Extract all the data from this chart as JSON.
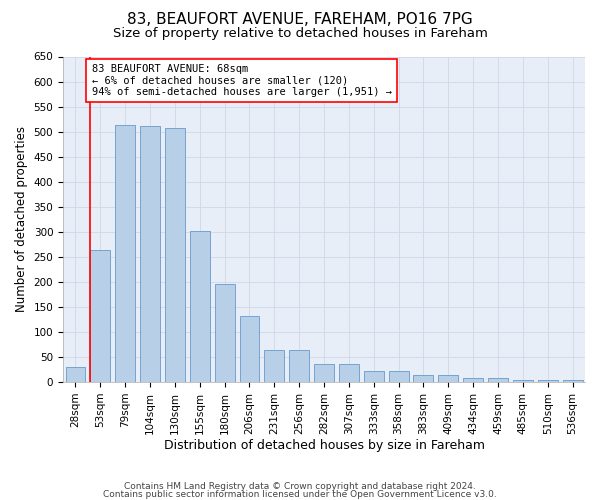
{
  "title1": "83, BEAUFORT AVENUE, FAREHAM, PO16 7PG",
  "title2": "Size of property relative to detached houses in Fareham",
  "xlabel": "Distribution of detached houses by size in Fareham",
  "ylabel": "Number of detached properties",
  "categories": [
    "28sqm",
    "53sqm",
    "79sqm",
    "104sqm",
    "130sqm",
    "155sqm",
    "180sqm",
    "206sqm",
    "231sqm",
    "256sqm",
    "282sqm",
    "307sqm",
    "333sqm",
    "358sqm",
    "383sqm",
    "409sqm",
    "434sqm",
    "459sqm",
    "485sqm",
    "510sqm",
    "536sqm"
  ],
  "values": [
    30,
    263,
    513,
    511,
    508,
    301,
    196,
    132,
    65,
    65,
    37,
    37,
    22,
    22,
    14,
    14,
    8,
    8,
    5,
    5,
    5
  ],
  "bar_color": "#b8cfe8",
  "bar_edge_color": "#6699cc",
  "vline_color": "red",
  "vline_x": 0.6,
  "annotation_text": "83 BEAUFORT AVENUE: 68sqm\n← 6% of detached houses are smaller (120)\n94% of semi-detached houses are larger (1,951) →",
  "annotation_box_color": "white",
  "annotation_box_edge": "red",
  "ylim": [
    0,
    650
  ],
  "yticks": [
    0,
    50,
    100,
    150,
    200,
    250,
    300,
    350,
    400,
    450,
    500,
    550,
    600,
    650
  ],
  "grid_color": "#d0d8e8",
  "bg_color": "#e8eef8",
  "footer1": "Contains HM Land Registry data © Crown copyright and database right 2024.",
  "footer2": "Contains public sector information licensed under the Open Government Licence v3.0.",
  "title1_fontsize": 11,
  "title2_fontsize": 9.5,
  "xlabel_fontsize": 9,
  "ylabel_fontsize": 8.5,
  "tick_fontsize": 7.5,
  "footer_fontsize": 6.5,
  "annot_fontsize": 7.5
}
